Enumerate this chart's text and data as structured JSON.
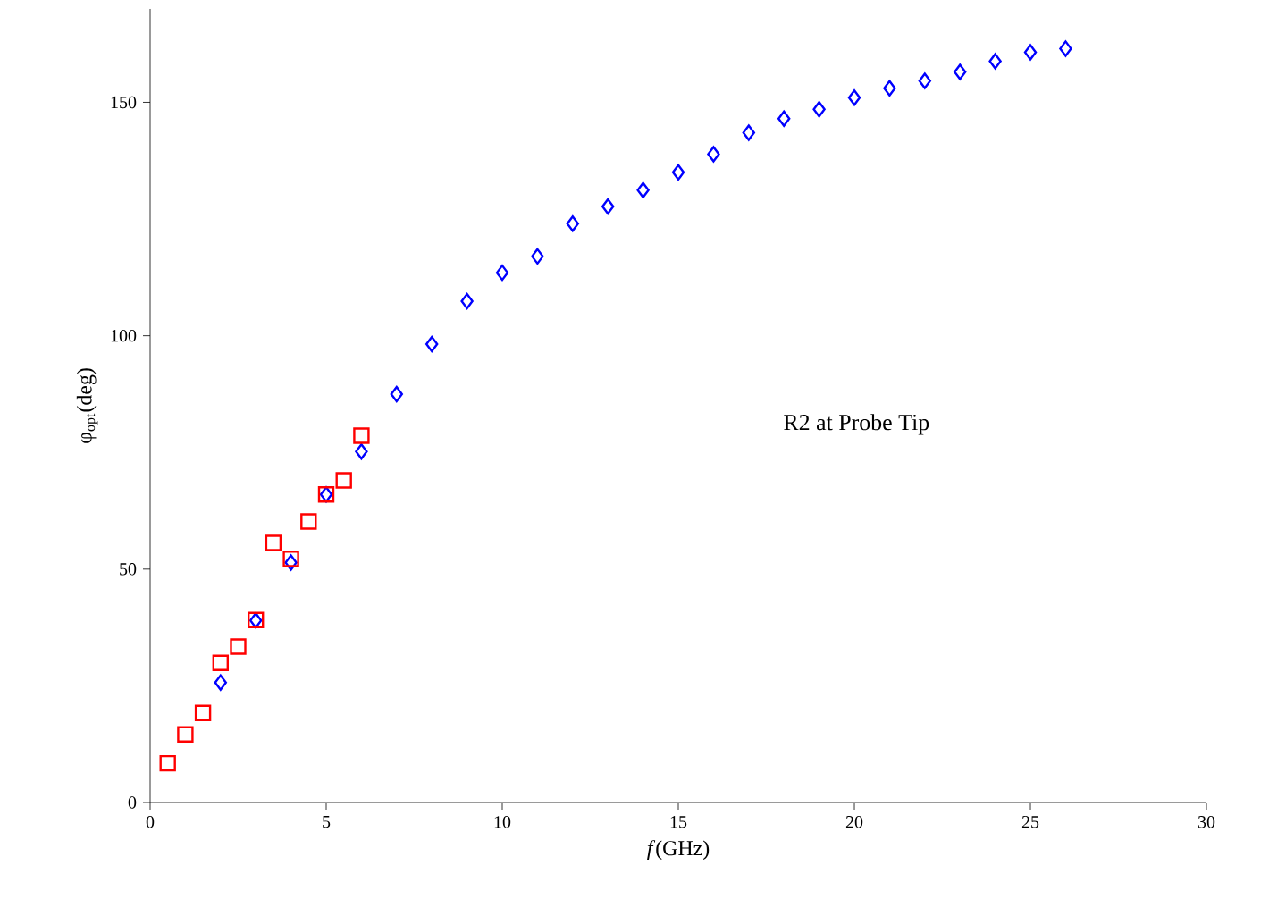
{
  "chart_data": {
    "type": "scatter",
    "xlabel": "*f*(GHz)",
    "ylabel": "φ$_{opt}$(deg)",
    "legend_title": "R2 at Probe Tip",
    "xlim": [
      0,
      30
    ],
    "ylim": [
      0,
      170
    ],
    "xticks": [
      0,
      5,
      10,
      15,
      20,
      25,
      30
    ],
    "yticks": [
      0,
      50,
      100,
      150
    ],
    "grid": false,
    "series": [
      {
        "color": "#0000ff",
        "marker": "diamond",
        "x": [
          2,
          3,
          4,
          5,
          6,
          7,
          8,
          9,
          10,
          11,
          12,
          13,
          14,
          15,
          16,
          17,
          18,
          19,
          20,
          21,
          22,
          23,
          24,
          25,
          26
        ],
        "values": [
          25.7,
          39,
          51.4,
          66,
          75.2,
          87.5,
          98.2,
          107.4,
          113.5,
          117,
          124,
          127.7,
          131.2,
          135,
          138.9,
          143.5,
          146.5,
          148.5,
          151,
          153,
          154.6,
          156.5,
          158.8,
          160.7,
          161.5
        ]
      },
      {
        "color": "#ff0000",
        "marker": "square",
        "x": [
          0.5,
          1,
          1.5,
          2,
          2.5,
          3,
          3.5,
          4,
          4.5,
          5,
          5.5,
          6
        ],
        "values": [
          8.4,
          14.6,
          19.2,
          29.9,
          33.4,
          39.1,
          55.6,
          52.2,
          60.2,
          66,
          69,
          78.6
        ]
      }
    ]
  }
}
